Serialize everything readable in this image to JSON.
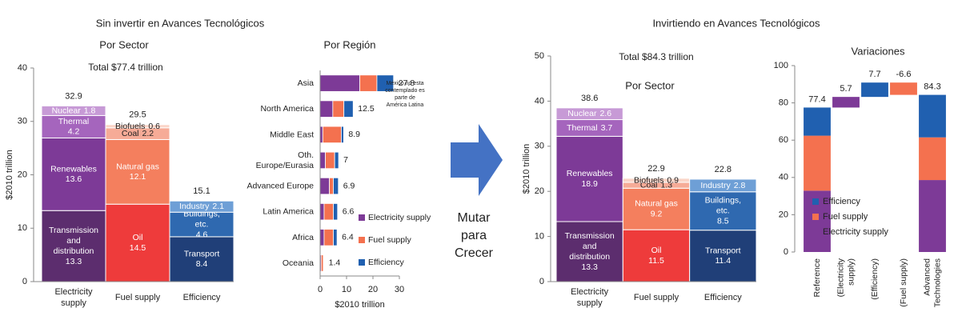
{
  "arrow_text": "Mutar para Crecer",
  "chart_data": [
    {
      "type": "stacked_bar",
      "group_title": "Sin invertir en Avances Tecnológicos",
      "title": "Por Sector",
      "annotation": "Total $77.4 trillion",
      "ylabel": "$2010 trillion",
      "ylim": [
        0,
        40
      ],
      "yticks": [
        0,
        10,
        20,
        30,
        40
      ],
      "categories": [
        "Electricity supply",
        "Fuel supply",
        "Efficiency"
      ],
      "stacks": [
        [
          {
            "name": "Transmission and distribution",
            "value": 13.3,
            "color": "#5c2d6e"
          },
          {
            "name": "Renewables",
            "value": 13.6,
            "color": "#7d3a97"
          },
          {
            "name": "Thermal",
            "value": 4.2,
            "color": "#a565bd"
          },
          {
            "name": "Nuclear",
            "value": 1.8,
            "color": "#c79ad6"
          }
        ],
        [
          {
            "name": "Oil",
            "value": 14.5,
            "color": "#ee3b3b"
          },
          {
            "name": "Natural gas",
            "value": 12.1,
            "color": "#f47f5e"
          },
          {
            "name": "Coal",
            "value": 2.2,
            "color": "#f6ab97"
          },
          {
            "name": "Biofuels",
            "value": 0.6,
            "color": "#fad5c8"
          }
        ],
        [
          {
            "name": "Transport",
            "value": 8.4,
            "color": "#203f78"
          },
          {
            "name": "Buildings, etc.",
            "value": 4.6,
            "color": "#2f69b0"
          },
          {
            "name": "Industry",
            "value": 2.1,
            "color": "#6e9fd6"
          }
        ]
      ],
      "totals": [
        32.9,
        29.5,
        15.1
      ]
    },
    {
      "type": "hbar_stacked",
      "title": "Por Región",
      "xlabel": "$2010 trillion",
      "xlim": [
        0,
        30
      ],
      "xticks": [
        0,
        10,
        20,
        30
      ],
      "annotation": "México no esta contemplado es parte de América Latina",
      "legend": "lower right",
      "categories": [
        "Asia",
        "North America",
        "Middle East",
        "Oth. Europe/Eurasia",
        "Advanced Europe",
        "Latin America",
        "Africa",
        "Oceania"
      ],
      "series": [
        {
          "name": "Electricity supply",
          "color": "#7d3a97",
          "values": [
            15,
            4.8,
            1.0,
            2.0,
            3.5,
            1.5,
            1.5,
            0.4
          ]
        },
        {
          "name": "Fuel supply",
          "color": "#f4714f",
          "values": [
            6.5,
            4.2,
            7.0,
            3.5,
            1.5,
            3.5,
            3.5,
            0.8
          ]
        },
        {
          "name": "Efficiency",
          "color": "#2060b0",
          "values": [
            6.3,
            3.5,
            0.9,
            1.5,
            1.9,
            1.6,
            1.4,
            0.2
          ]
        }
      ],
      "totals": [
        27.8,
        12.5,
        8.9,
        7.0,
        6.9,
        6.6,
        6.4,
        1.4
      ]
    },
    {
      "type": "stacked_bar",
      "group_title": "Invirtiendo en Avances Tecnológicos",
      "title": "Por Sector",
      "annotation": "Total $84.3 trillion",
      "ylabel": "$2010 trillion",
      "ylim": [
        0,
        50
      ],
      "yticks": [
        0,
        10,
        20,
        30,
        40,
        50
      ],
      "categories": [
        "Electricity supply",
        "Fuel supply",
        "Efficiency"
      ],
      "stacks": [
        [
          {
            "name": "Transmission and distribution",
            "value": 13.3,
            "color": "#5c2d6e"
          },
          {
            "name": "Renewables",
            "value": 18.9,
            "color": "#7d3a97"
          },
          {
            "name": "Thermal",
            "value": 3.7,
            "color": "#a565bd"
          },
          {
            "name": "Nuclear",
            "value": 2.6,
            "color": "#c79ad6"
          }
        ],
        [
          {
            "name": "Oil",
            "value": 11.5,
            "color": "#ee3b3b"
          },
          {
            "name": "Natural gas",
            "value": 9.2,
            "color": "#f47f5e"
          },
          {
            "name": "Coal",
            "value": 1.3,
            "color": "#f6ab97"
          },
          {
            "name": "Biofuels",
            "value": 0.9,
            "color": "#fad5c8"
          }
        ],
        [
          {
            "name": "Transport",
            "value": 11.4,
            "color": "#203f78"
          },
          {
            "name": "Buildings, etc.",
            "value": 8.5,
            "color": "#2f69b0"
          },
          {
            "name": "Industry",
            "value": 2.8,
            "color": "#6e9fd6"
          }
        ]
      ],
      "totals": [
        38.6,
        22.9,
        22.8
      ]
    },
    {
      "type": "waterfall",
      "title": "Variaciones",
      "ylim": [
        0,
        100
      ],
      "yticks": [
        0,
        20,
        40,
        60,
        80,
        100
      ],
      "legend": "lower right",
      "categories": [
        "Reference",
        "(Electricity supply)",
        "(Efficiency)",
        "(Fuel supply)",
        "Advanced Technologies"
      ],
      "series": [
        {
          "name": "Efficiency",
          "color": "#2060b0",
          "values": [
            15.1,
            null,
            7.7,
            null,
            22.8
          ]
        },
        {
          "name": "Fuel supply",
          "color": "#f4714f",
          "values": [
            29.5,
            null,
            null,
            -6.6,
            22.9
          ]
        },
        {
          "name": "Electricity supply",
          "color": "#7d3a97",
          "values": [
            32.9,
            5.7,
            null,
            null,
            38.6
          ]
        }
      ],
      "labels": [
        77.4,
        5.7,
        7.7,
        -6.6,
        84.3
      ]
    }
  ]
}
